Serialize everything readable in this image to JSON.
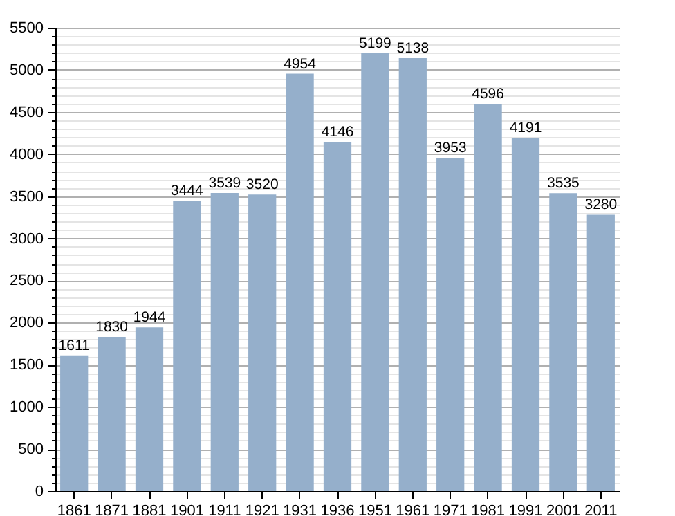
{
  "chart_data": {
    "type": "bar",
    "categories": [
      "1861",
      "1871",
      "1881",
      "1901",
      "1911",
      "1921",
      "1931",
      "1936",
      "1951",
      "1961",
      "1971",
      "1981",
      "1991",
      "2001",
      "2011"
    ],
    "values": [
      1611,
      1830,
      1944,
      3444,
      3539,
      3520,
      4954,
      4146,
      5199,
      5138,
      3953,
      4596,
      4191,
      3535,
      3280
    ],
    "color": "#95afcb",
    "data_labels": true,
    "grid": "y",
    "ylim": [
      0,
      5500
    ],
    "yticks": [
      0,
      {
        "value": 100,
        "label": null
      },
      {
        "value": 200,
        "label": null
      },
      {
        "value": 300,
        "label": null
      },
      {
        "value": 400,
        "label": null
      },
      500,
      {
        "value": 600,
        "label": null
      },
      {
        "value": 700,
        "label": null
      },
      {
        "value": 800,
        "label": null
      },
      {
        "value": 900,
        "label": null
      },
      1000,
      {
        "value": 1100,
        "label": null
      },
      {
        "value": 1200,
        "label": null
      },
      {
        "value": 1300,
        "label": null
      },
      {
        "value": 1400,
        "label": null
      },
      1500,
      {
        "value": 1600,
        "label": null
      },
      {
        "value": 1700,
        "label": null
      },
      {
        "value": 1800,
        "label": null
      },
      {
        "value": 1900,
        "label": null
      },
      2000,
      {
        "value": 2100,
        "label": null
      },
      {
        "value": 2200,
        "label": null
      },
      {
        "value": 2300,
        "label": null
      },
      {
        "value": 2400,
        "label": null
      },
      2500,
      {
        "value": 2600,
        "label": null
      },
      {
        "value": 2700,
        "label": null
      },
      {
        "value": 2800,
        "label": null
      },
      {
        "value": 2900,
        "label": null
      },
      3000,
      {
        "value": 3100,
        "label": null
      },
      {
        "value": 3200,
        "label": null
      },
      {
        "value": 3300,
        "label": null
      },
      {
        "value": 3400,
        "label": null
      },
      3500,
      {
        "value": 3600,
        "label": null
      },
      {
        "value": 3700,
        "label": null
      },
      {
        "value": 3800,
        "label": null
      },
      {
        "value": 3900,
        "label": null
      },
      4000,
      {
        "value": 4100,
        "label": null
      },
      {
        "value": 4200,
        "label": null
      },
      {
        "value": 4300,
        "label": null
      },
      {
        "value": 4400,
        "label": null
      },
      4500,
      {
        "value": 4600,
        "label": null
      },
      {
        "value": 4700,
        "label": null
      },
      {
        "value": 4800,
        "label": null
      },
      {
        "value": 4900,
        "label": null
      },
      5000,
      {
        "value": 5100,
        "label": null
      },
      {
        "value": 5200,
        "label": null
      },
      {
        "value": 5300,
        "label": null
      },
      {
        "value": 5400,
        "label": null
      },
      5500
    ]
  }
}
